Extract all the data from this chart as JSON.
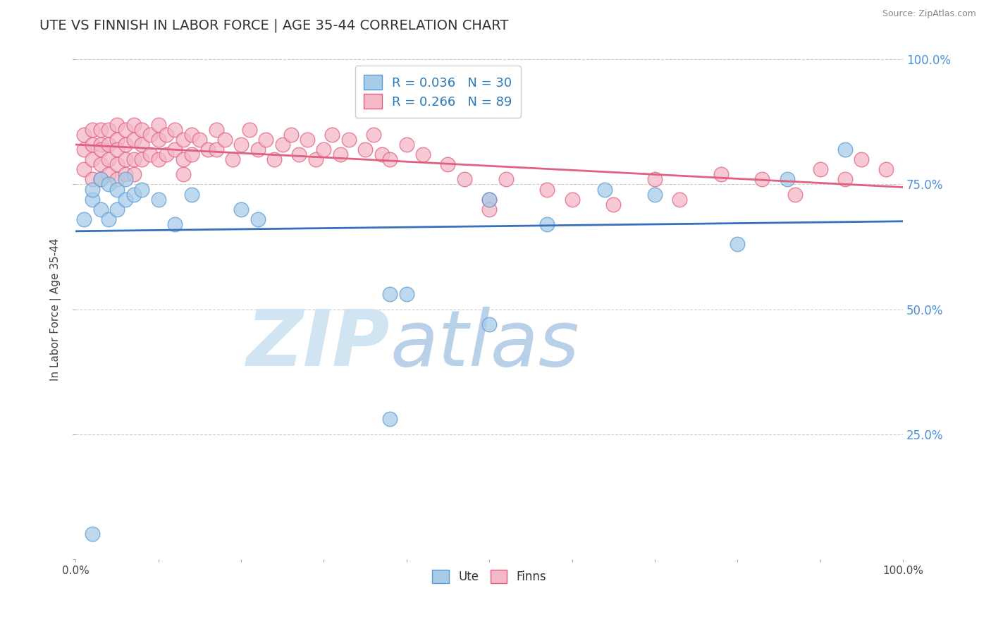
{
  "title": "UTE VS FINNISH IN LABOR FORCE | AGE 35-44 CORRELATION CHART",
  "source": "Source: ZipAtlas.com",
  "ylabel": "In Labor Force | Age 35-44",
  "xlim": [
    0.0,
    1.0
  ],
  "ylim": [
    0.0,
    1.0
  ],
  "ute_color": "#a8cce8",
  "finn_color": "#f4b8c8",
  "ute_edge_color": "#5b9bd5",
  "finn_edge_color": "#e06080",
  "ute_line_color": "#3a6fbd",
  "finn_line_color": "#e06080",
  "ute_R": 0.036,
  "ute_N": 30,
  "finn_R": 0.266,
  "finn_N": 89,
  "legend_R_color": "#2b7bba",
  "watermark_zip": "ZIP",
  "watermark_atlas": "atlas",
  "watermark_color_zip": "#c0d8ee",
  "watermark_color_atlas": "#9fbfdf",
  "background_color": "#ffffff",
  "title_color": "#333333",
  "title_fontsize": 14,
  "grid_color": "#cccccc",
  "ute_x": [
    0.01,
    0.02,
    0.02,
    0.03,
    0.03,
    0.04,
    0.04,
    0.05,
    0.05,
    0.06,
    0.06,
    0.07,
    0.08,
    0.1,
    0.12,
    0.14,
    0.2,
    0.22,
    0.38,
    0.4,
    0.5,
    0.57,
    0.64,
    0.7,
    0.8,
    0.86,
    0.93,
    0.02,
    0.38,
    0.5
  ],
  "ute_y": [
    0.68,
    0.72,
    0.74,
    0.76,
    0.7,
    0.75,
    0.68,
    0.74,
    0.7,
    0.76,
    0.72,
    0.73,
    0.74,
    0.72,
    0.67,
    0.73,
    0.7,
    0.68,
    0.53,
    0.53,
    0.72,
    0.67,
    0.74,
    0.73,
    0.63,
    0.76,
    0.82,
    0.05,
    0.28,
    0.47
  ],
  "finn_x": [
    0.01,
    0.01,
    0.01,
    0.02,
    0.02,
    0.02,
    0.02,
    0.03,
    0.03,
    0.03,
    0.03,
    0.03,
    0.04,
    0.04,
    0.04,
    0.04,
    0.05,
    0.05,
    0.05,
    0.05,
    0.05,
    0.06,
    0.06,
    0.06,
    0.06,
    0.07,
    0.07,
    0.07,
    0.07,
    0.08,
    0.08,
    0.08,
    0.09,
    0.09,
    0.1,
    0.1,
    0.1,
    0.11,
    0.11,
    0.12,
    0.12,
    0.13,
    0.13,
    0.13,
    0.14,
    0.14,
    0.15,
    0.16,
    0.17,
    0.17,
    0.18,
    0.19,
    0.2,
    0.21,
    0.22,
    0.23,
    0.24,
    0.25,
    0.26,
    0.27,
    0.28,
    0.29,
    0.3,
    0.31,
    0.32,
    0.33,
    0.35,
    0.36,
    0.37,
    0.38,
    0.4,
    0.42,
    0.45,
    0.47,
    0.5,
    0.52,
    0.57,
    0.6,
    0.65,
    0.7,
    0.73,
    0.78,
    0.83,
    0.87,
    0.9,
    0.93,
    0.95,
    0.98,
    0.5
  ],
  "finn_y": [
    0.85,
    0.82,
    0.78,
    0.86,
    0.83,
    0.8,
    0.76,
    0.86,
    0.83,
    0.82,
    0.79,
    0.76,
    0.86,
    0.83,
    0.8,
    0.77,
    0.87,
    0.84,
    0.82,
    0.79,
    0.76,
    0.86,
    0.83,
    0.8,
    0.77,
    0.87,
    0.84,
    0.8,
    0.77,
    0.86,
    0.83,
    0.8,
    0.85,
    0.81,
    0.87,
    0.84,
    0.8,
    0.85,
    0.81,
    0.86,
    0.82,
    0.84,
    0.8,
    0.77,
    0.85,
    0.81,
    0.84,
    0.82,
    0.86,
    0.82,
    0.84,
    0.8,
    0.83,
    0.86,
    0.82,
    0.84,
    0.8,
    0.83,
    0.85,
    0.81,
    0.84,
    0.8,
    0.82,
    0.85,
    0.81,
    0.84,
    0.82,
    0.85,
    0.81,
    0.8,
    0.83,
    0.81,
    0.79,
    0.76,
    0.72,
    0.76,
    0.74,
    0.72,
    0.71,
    0.76,
    0.72,
    0.77,
    0.76,
    0.73,
    0.78,
    0.76,
    0.8,
    0.78,
    0.7
  ]
}
